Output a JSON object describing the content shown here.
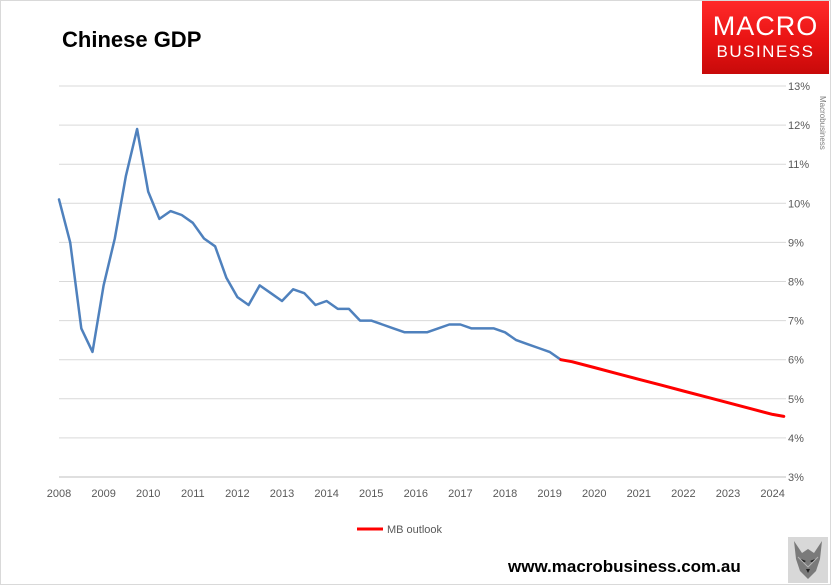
{
  "chart_data": {
    "type": "line",
    "title": "Chinese GDP",
    "ylim": [
      3,
      13
    ],
    "xlim": [
      2008,
      2024.3
    ],
    "y_ticks": [
      "3%",
      "4%",
      "5%",
      "6%",
      "7%",
      "8%",
      "9%",
      "10%",
      "11%",
      "12%",
      "13%"
    ],
    "x_ticks": [
      "2008",
      "2009",
      "2010",
      "2011",
      "2012",
      "2013",
      "2014",
      "2015",
      "2016",
      "2017",
      "2018",
      "2019",
      "2020",
      "2021",
      "2022",
      "2023",
      "2024"
    ],
    "y_axis_side": "right",
    "grid": true,
    "legend_position": "bottom",
    "series": [
      {
        "color": "#4f81bd",
        "points": [
          [
            2008.0,
            10.1
          ],
          [
            2008.25,
            9.0
          ],
          [
            2008.5,
            6.8
          ],
          [
            2008.75,
            6.2
          ],
          [
            2009.0,
            7.9
          ],
          [
            2009.25,
            9.1
          ],
          [
            2009.5,
            10.7
          ],
          [
            2009.75,
            11.9
          ],
          [
            2010.0,
            10.3
          ],
          [
            2010.25,
            9.6
          ],
          [
            2010.5,
            9.8
          ],
          [
            2010.75,
            9.7
          ],
          [
            2011.0,
            9.5
          ],
          [
            2011.25,
            9.1
          ],
          [
            2011.5,
            8.9
          ],
          [
            2011.75,
            8.1
          ],
          [
            2012.0,
            7.6
          ],
          [
            2012.25,
            7.4
          ],
          [
            2012.5,
            7.9
          ],
          [
            2012.75,
            7.7
          ],
          [
            2013.0,
            7.5
          ],
          [
            2013.25,
            7.8
          ],
          [
            2013.5,
            7.7
          ],
          [
            2013.75,
            7.4
          ],
          [
            2014.0,
            7.5
          ],
          [
            2014.25,
            7.3
          ],
          [
            2014.5,
            7.3
          ],
          [
            2014.75,
            7.0
          ],
          [
            2015.0,
            7.0
          ],
          [
            2015.25,
            6.9
          ],
          [
            2015.5,
            6.8
          ],
          [
            2015.75,
            6.7
          ],
          [
            2016.0,
            6.7
          ],
          [
            2016.25,
            6.7
          ],
          [
            2016.5,
            6.8
          ],
          [
            2016.75,
            6.9
          ],
          [
            2017.0,
            6.9
          ],
          [
            2017.25,
            6.8
          ],
          [
            2017.5,
            6.8
          ],
          [
            2017.75,
            6.8
          ],
          [
            2018.0,
            6.7
          ],
          [
            2018.25,
            6.5
          ],
          [
            2018.5,
            6.4
          ],
          [
            2018.75,
            6.3
          ],
          [
            2019.0,
            6.2
          ],
          [
            2019.25,
            6.0
          ]
        ]
      },
      {
        "name": "MB outlook",
        "color": "#ff0000",
        "points": [
          [
            2019.25,
            6.0
          ],
          [
            2019.5,
            5.95
          ],
          [
            2020.0,
            5.8
          ],
          [
            2020.5,
            5.65
          ],
          [
            2021.0,
            5.5
          ],
          [
            2021.5,
            5.35
          ],
          [
            2022.0,
            5.2
          ],
          [
            2022.5,
            5.05
          ],
          [
            2023.0,
            4.9
          ],
          [
            2023.5,
            4.75
          ],
          [
            2024.0,
            4.6
          ],
          [
            2024.25,
            4.55
          ]
        ]
      }
    ]
  },
  "brand": {
    "logo_line1": "MACRO",
    "logo_line2": "BUSINESS",
    "footer_url": "www.macrobusiness.com.au",
    "side_label": "Macrobusiness",
    "logo_color": "#e81313"
  }
}
